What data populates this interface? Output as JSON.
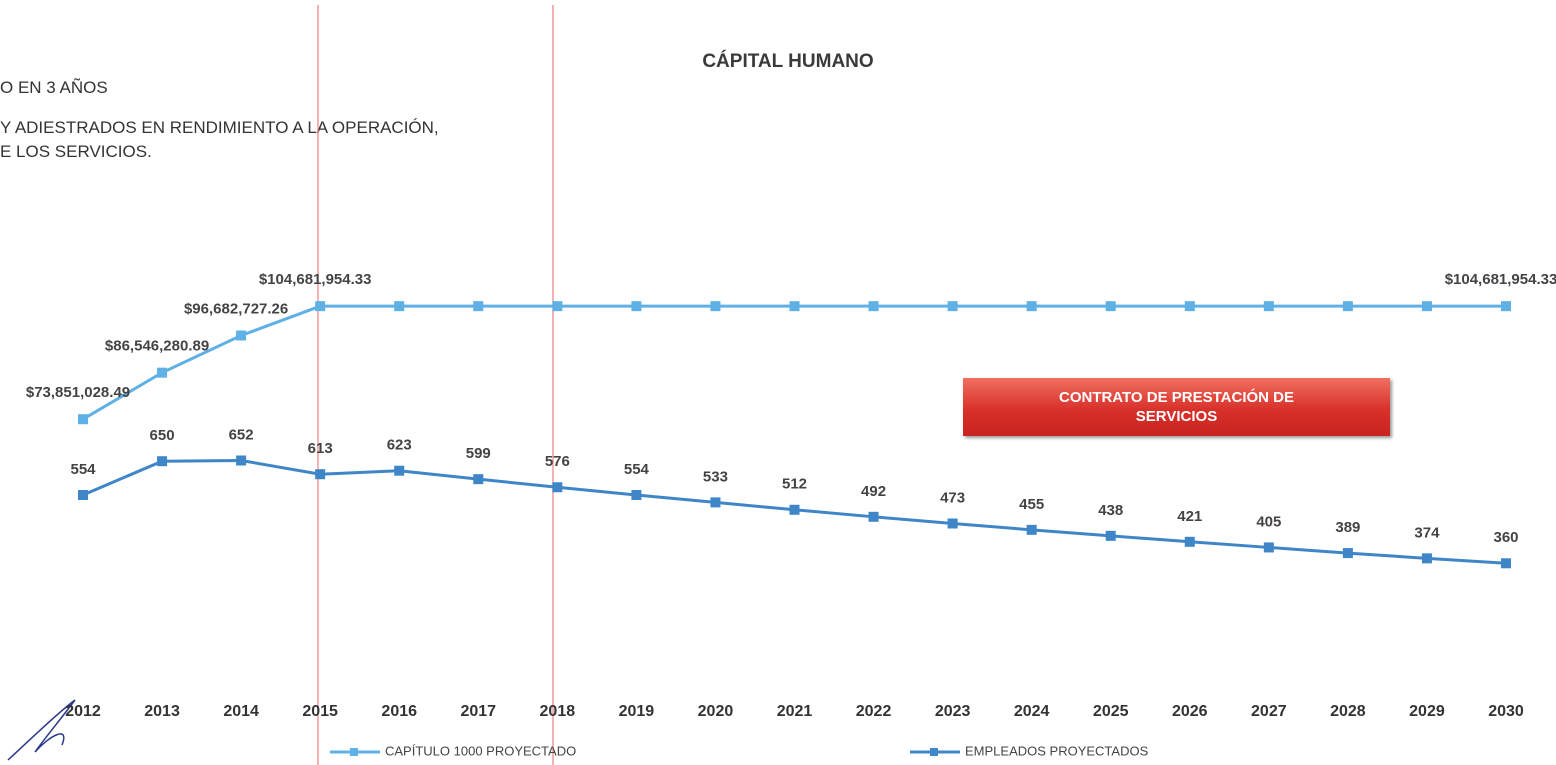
{
  "chart_data": {
    "type": "line",
    "title": "CÁPITAL HUMANO",
    "annotations": [
      "O EN 3 AÑOS",
      "Y ADIESTRADOS EN RENDIMIENTO A LA OPERACIÓN,",
      "E LOS SERVICIOS.",
      "CONTRATO DE PRESTACIÓN DE SERVICIOS"
    ],
    "categories": [
      "2012",
      "2013",
      "2014",
      "2015",
      "2016",
      "2017",
      "2018",
      "2019",
      "2020",
      "2021",
      "2022",
      "2023",
      "2024",
      "2025",
      "2026",
      "2027",
      "2028",
      "2029",
      "2030"
    ],
    "series": [
      {
        "name": "CAPÍTULO 1000 PROYECTADO",
        "color": "#5fb0e4",
        "values": [
          73851028.49,
          86546280.89,
          96682727.26,
          104681954.33,
          104681954.33,
          104681954.33,
          104681954.33,
          104681954.33,
          104681954.33,
          104681954.33,
          104681954.33,
          104681954.33,
          104681954.33,
          104681954.33,
          104681954.33,
          104681954.33,
          104681954.33,
          104681954.33,
          104681954.33
        ],
        "value_labels": [
          "$73,851,028.49",
          "$86,546,280.89",
          "$96,682,727.26",
          "$104,681,954.33",
          null,
          null,
          null,
          null,
          null,
          null,
          null,
          null,
          null,
          null,
          null,
          null,
          null,
          null,
          "$104,681,954.33"
        ]
      },
      {
        "name": "EMPLEADOS PROYECTADOS",
        "color": "#3f86c8",
        "axis": "y2",
        "values": [
          554,
          650,
          652,
          613,
          623,
          599,
          576,
          554,
          533,
          512,
          492,
          473,
          455,
          438,
          421,
          405,
          389,
          374,
          360
        ]
      }
    ],
    "ylim": [
      0,
      120000000
    ],
    "y2lim": [
      0,
      1250
    ],
    "legend": "bottom"
  }
}
